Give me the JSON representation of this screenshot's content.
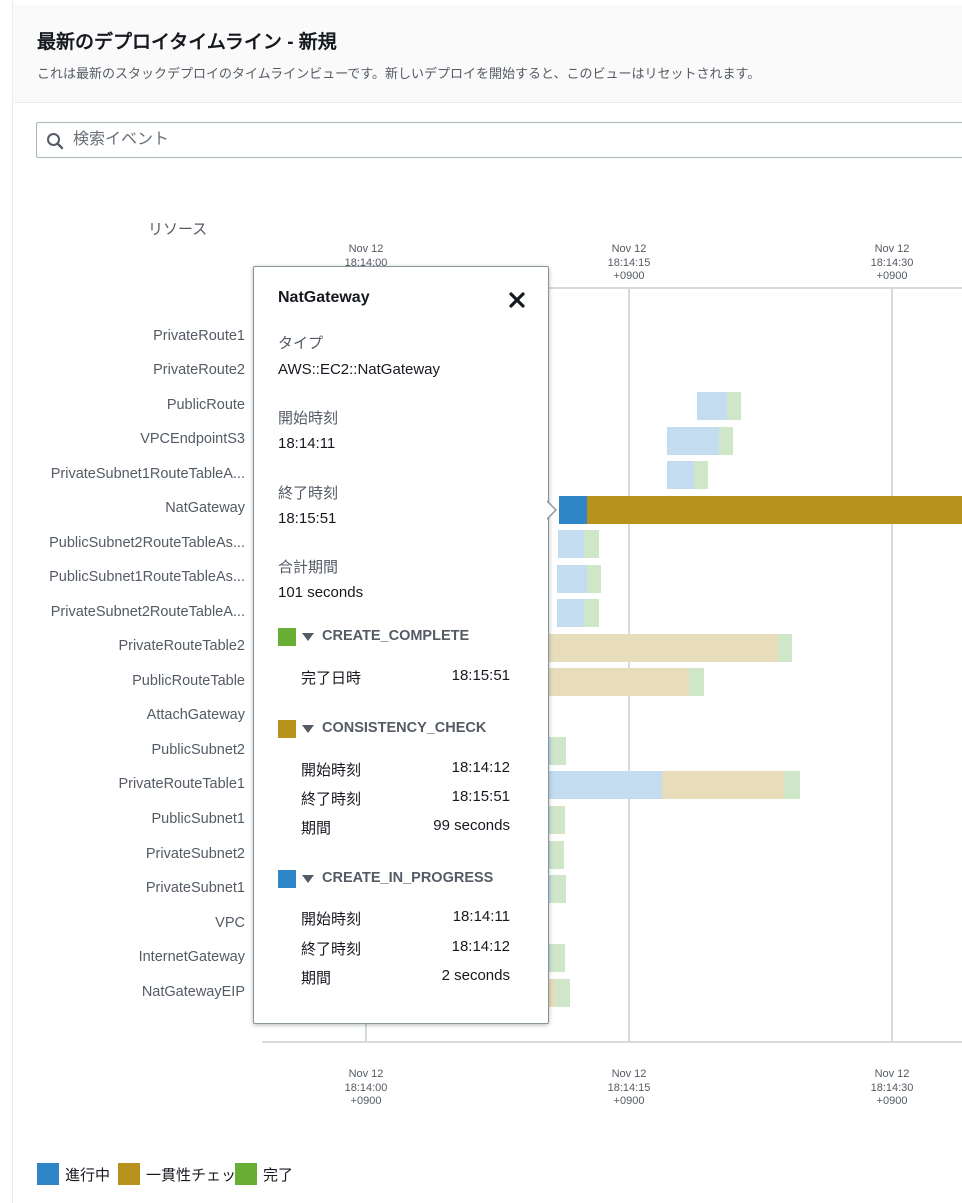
{
  "header": {
    "title": "最新のデプロイタイムライン - 新規",
    "description": "これは最新のスタックデプロイのタイムラインビューです。新しいデプロイを開始すると、このビューはリセットされます。"
  },
  "search": {
    "placeholder": "検索イベント",
    "value": ""
  },
  "timeline": {
    "resource_header": "リソース",
    "axis_ticks": [
      {
        "date": "Nov 12",
        "time": "18:14:00",
        "tz": "+0900"
      },
      {
        "date": "Nov 12",
        "time": "18:14:15",
        "tz": "+0900"
      },
      {
        "date": "Nov 12",
        "time": "18:14:30",
        "tz": "+0900"
      }
    ],
    "resources": [
      "PrivateRoute1",
      "PrivateRoute2",
      "PublicRoute",
      "VPCEndpointS3",
      "PrivateSubnet1RouteTableA...",
      "NatGateway",
      "PublicSubnet2RouteTableAs...",
      "PublicSubnet1RouteTableAs...",
      "PrivateSubnet2RouteTableA...",
      "PrivateRouteTable2",
      "PublicRouteTable",
      "AttachGateway",
      "PublicSubnet2",
      "PrivateRouteTable1",
      "PublicSubnet1",
      "PrivateSubnet2",
      "PrivateSubnet1",
      "VPC",
      "InternetGateway",
      "NatGatewayEIP"
    ]
  },
  "popover": {
    "title": "NatGateway",
    "close_icon": "close-icon",
    "type_label": "タイプ",
    "type_value": "AWS::EC2::NatGateway",
    "start_label": "開始時刻",
    "start_value": "18:14:11",
    "end_label": "終了時刻",
    "end_value": "18:15:51",
    "total_label": "合計期間",
    "total_value": "101 seconds",
    "statuses": [
      {
        "name": "CREATE_COMPLETE",
        "color": "#6aaf35",
        "rows": [
          {
            "key": "完了日時",
            "value": "18:15:51"
          }
        ]
      },
      {
        "name": "CONSISTENCY_CHECK",
        "color": "#b7921d",
        "rows": [
          {
            "key": "開始時刻",
            "value": "18:14:12"
          },
          {
            "key": "終了時刻",
            "value": "18:15:51"
          },
          {
            "key": "期間",
            "value": "99 seconds"
          }
        ]
      },
      {
        "name": "CREATE_IN_PROGRESS",
        "color": "#2e86c8",
        "rows": [
          {
            "key": "開始時刻",
            "value": "18:14:11"
          },
          {
            "key": "終了時刻",
            "value": "18:14:12"
          },
          {
            "key": "期間",
            "value": "2 seconds"
          }
        ]
      }
    ]
  },
  "legend": [
    {
      "label": "進行中",
      "color": "#2e86c8"
    },
    {
      "label": "一貫性チェッ",
      "color": "#b7921d"
    },
    {
      "label": "完了",
      "color": "#6aaf35"
    }
  ],
  "colors": {
    "in_progress": "#2e86c8",
    "consistency": "#b7921d",
    "complete": "#6aaf35",
    "in_progress_faded": "#c4dcef",
    "consistency_faded": "#e8ddbb",
    "complete_faded": "#d0e6c8"
  }
}
